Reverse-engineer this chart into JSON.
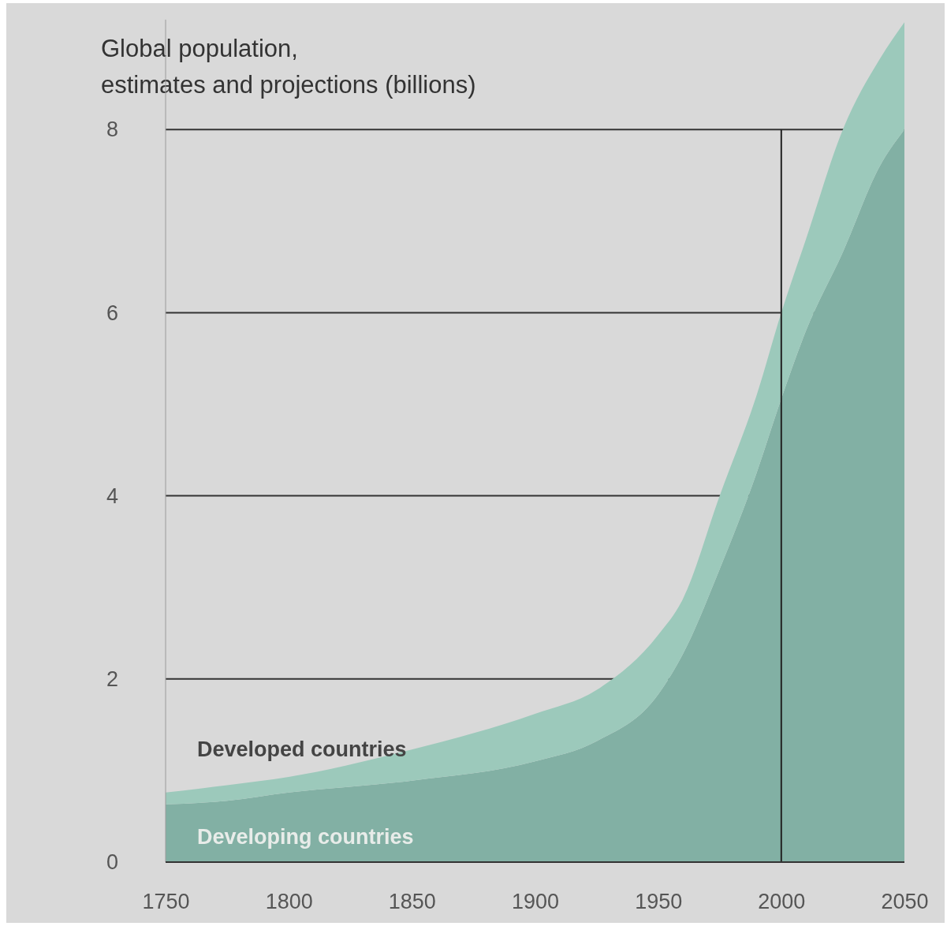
{
  "chart_data": {
    "type": "area",
    "title": "Global population,\nestimates and projections (billions)",
    "stacked": true,
    "x": [
      1750,
      1775,
      1800,
      1850,
      1900,
      1925,
      1950,
      1960,
      1975,
      1990,
      2000,
      2010,
      2025,
      2040,
      2050
    ],
    "series": [
      {
        "name": "Developing countries",
        "color": "#82b0a4",
        "values": [
          0.63,
          0.67,
          0.76,
          0.89,
          1.1,
          1.32,
          1.83,
          2.27,
          3.2,
          4.25,
          5.06,
          5.8,
          6.66,
          7.6,
          8.0
        ]
      },
      {
        "name": "Developed countries",
        "color": "#9cc9bb",
        "values": [
          0.13,
          0.17,
          0.17,
          0.34,
          0.52,
          0.56,
          0.65,
          0.6,
          0.8,
          0.85,
          0.94,
          1.0,
          1.34,
          1.17,
          1.17
        ]
      }
    ],
    "xlim": [
      1750,
      2050
    ],
    "xticks": [
      1750,
      1800,
      1850,
      1900,
      1950,
      2000,
      2050
    ],
    "ylim": [
      0,
      9.2
    ],
    "yticks": [
      0,
      2,
      4,
      6,
      8
    ],
    "grid": "y",
    "ref_lines": [
      {
        "axis": "x",
        "value": 2000,
        "color": "#222222"
      }
    ]
  }
}
